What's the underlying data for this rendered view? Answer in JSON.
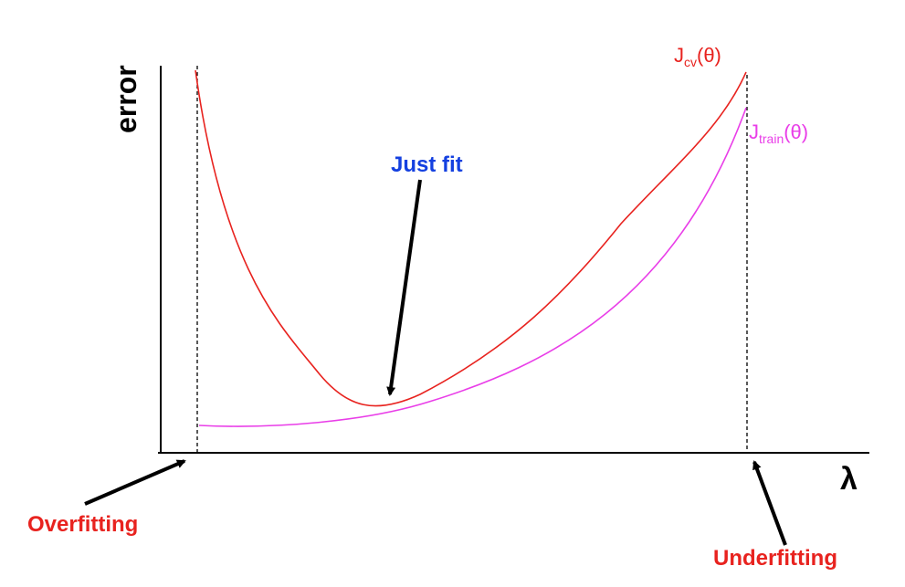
{
  "axes": {
    "y_label": "error",
    "x_label": "λ"
  },
  "curves": {
    "cv": {
      "name_main": "J",
      "name_sub": "cv",
      "name_suffix": "(θ)",
      "color": "#e8231f"
    },
    "train": {
      "name_main": "J",
      "name_sub": "train",
      "name_suffix": "(θ)",
      "color": "#e93ee8"
    }
  },
  "annotations": {
    "just_fit": {
      "text": "Just fit",
      "color": "#1440e0"
    },
    "overfitting": {
      "text": "Overfitting",
      "color": "#e8231f"
    },
    "underfitting": {
      "text": "Underfitting",
      "color": "#e8231f"
    }
  }
}
